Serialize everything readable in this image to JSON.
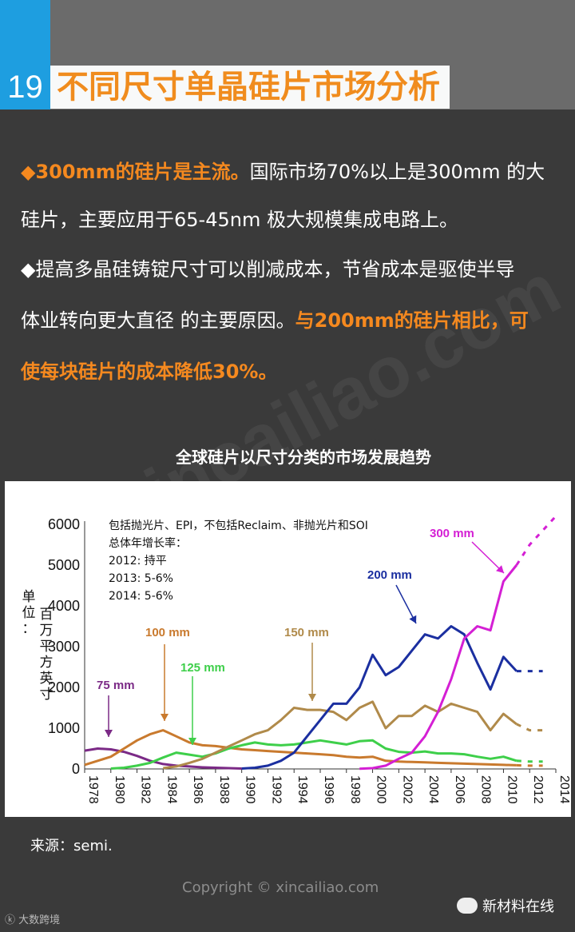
{
  "header": {
    "number": "19",
    "title": "不同尺寸单晶硅片市场分析"
  },
  "paragraphs": [
    {
      "hl1": "◆300mm的硅片是主流。",
      "text1": "国际市场70%以上是300mm 的大"
    },
    {
      "text1": "硅片，主要应用于65-45nm 极大规模集成电路上。"
    },
    {
      "text1": "◆提高多晶硅铸锭尺寸可以削减成本，节省成本是驱使半导"
    },
    {
      "text1": "体业转向更大直径 的主要原因。",
      "hl1": "与200mm的硅片相比，可"
    },
    {
      "hl1": "使每块硅片的成本降低30%。"
    }
  ],
  "watermarks": [
    "xincailiao.com",
    "xincailiao.com"
  ],
  "chart_title": "全球硅片以尺寸分类的市场发展趋势",
  "chart_data": {
    "type": "line",
    "ylabel": "单位：百万平方英寸",
    "ylim": [
      0,
      6000
    ],
    "yticks": [
      "0",
      "1000",
      "2000",
      "3000",
      "4000",
      "5000",
      "6000"
    ],
    "xticks": [
      "1978",
      "1980",
      "1982",
      "1984",
      "1986",
      "1988",
      "1990",
      "1992",
      "1994",
      "1996",
      "1998",
      "2000",
      "2002",
      "2004",
      "2006",
      "2008",
      "2010",
      "2012",
      "2014"
    ],
    "notes": [
      "包括抛光片、EPI，不包括Reclaim、非抛光片和SOI",
      "总体年增长率：",
      "2012: 持平",
      "2013: 5-6%",
      "2014: 5-6%"
    ],
    "series": [
      {
        "name": "75 mm",
        "color": "#7b2a86",
        "x": [
          1978,
          1979,
          1980,
          1981,
          1982,
          1983,
          1984,
          1985,
          1986,
          1987,
          1988,
          1989,
          1990
        ],
        "y": [
          450,
          500,
          480,
          420,
          320,
          200,
          120,
          80,
          60,
          40,
          30,
          20,
          10
        ]
      },
      {
        "name": "100 mm",
        "color": "#c97a2e",
        "x": [
          1978,
          1979,
          1980,
          1981,
          1982,
          1983,
          1984,
          1985,
          1986,
          1987,
          1988,
          1989,
          1990,
          1991,
          1992,
          1993,
          1994,
          1995,
          1996,
          1997,
          1998,
          1999,
          2000,
          2001,
          2002,
          2003,
          2004,
          2005,
          2006,
          2007,
          2008,
          2009,
          2010,
          2011
        ],
        "y": [
          100,
          200,
          300,
          500,
          700,
          850,
          950,
          800,
          650,
          580,
          560,
          520,
          480,
          460,
          440,
          420,
          400,
          380,
          360,
          340,
          300,
          280,
          300,
          200,
          180,
          170,
          160,
          150,
          140,
          130,
          120,
          110,
          100,
          90
        ]
      },
      {
        "name": "125 mm",
        "color": "#3ecf4a",
        "x": [
          1980,
          1981,
          1982,
          1983,
          1984,
          1985,
          1986,
          1987,
          1988,
          1989,
          1990,
          1991,
          1992,
          1993,
          1994,
          1995,
          1996,
          1997,
          1998,
          1999,
          2000,
          2001,
          2002,
          2003,
          2004,
          2005,
          2006,
          2007,
          2008,
          2009,
          2010,
          2011
        ],
        "y": [
          10,
          30,
          80,
          150,
          280,
          400,
          350,
          300,
          380,
          500,
          580,
          650,
          600,
          580,
          600,
          650,
          700,
          650,
          600,
          680,
          700,
          500,
          420,
          400,
          430,
          380,
          380,
          360,
          300,
          250,
          300,
          200
        ]
      },
      {
        "name": "150 mm",
        "color": "#b08a4a",
        "x": [
          1984,
          1985,
          1986,
          1987,
          1988,
          1989,
          1990,
          1991,
          1992,
          1993,
          1994,
          1995,
          1996,
          1997,
          1998,
          1999,
          2000,
          2001,
          2002,
          2003,
          2004,
          2005,
          2006,
          2007,
          2008,
          2009,
          2010,
          2011
        ],
        "y": [
          20,
          60,
          150,
          250,
          400,
          550,
          700,
          850,
          950,
          1200,
          1500,
          1450,
          1450,
          1400,
          1200,
          1500,
          1650,
          1000,
          1300,
          1300,
          1550,
          1400,
          1600,
          1500,
          1400,
          950,
          1350,
          1100
        ]
      },
      {
        "name": "200 mm",
        "color": "#1b2fa0",
        "x": [
          1990,
          1991,
          1992,
          1993,
          1994,
          1995,
          1996,
          1997,
          1998,
          1999,
          2000,
          2001,
          2002,
          2003,
          2004,
          2005,
          2006,
          2007,
          2008,
          2009,
          2010,
          2011
        ],
        "y": [
          10,
          30,
          80,
          200,
          400,
          800,
          1200,
          1600,
          1600,
          2000,
          2800,
          2300,
          2500,
          2900,
          3300,
          3200,
          3500,
          3300,
          2600,
          1950,
          2750,
          2400
        ]
      },
      {
        "name": "300 mm",
        "color": "#d41fd4",
        "x": [
          1999,
          2000,
          2001,
          2002,
          2003,
          2004,
          2005,
          2006,
          2007,
          2008,
          2009,
          2010,
          2011
        ],
        "y": [
          5,
          20,
          80,
          250,
          400,
          800,
          1400,
          2200,
          3200,
          3500,
          3400,
          4600,
          5000
        ]
      }
    ],
    "forecast": [
      {
        "series": "300 mm",
        "x": [
          2011,
          2012,
          2013,
          2014
        ],
        "y": [
          5000,
          5500,
          5850,
          6200
        ]
      },
      {
        "series": "200 mm",
        "x": [
          2011,
          2012,
          2013
        ],
        "y": [
          2400,
          2400,
          2400
        ]
      },
      {
        "series": "150 mm",
        "x": [
          2011,
          2012,
          2013
        ],
        "y": [
          1100,
          950,
          950
        ]
      },
      {
        "series": "125 mm",
        "x": [
          2011,
          2012,
          2013
        ],
        "y": [
          200,
          180,
          180
        ]
      },
      {
        "series": "100 mm",
        "x": [
          2011,
          2012,
          2013
        ],
        "y": [
          90,
          80,
          80
        ]
      }
    ],
    "annotations": [
      {
        "series": "75 mm",
        "text": "75 mm"
      },
      {
        "series": "100 mm",
        "text": "100 mm"
      },
      {
        "series": "125 mm",
        "text": "125 mm"
      },
      {
        "series": "150 mm",
        "text": "150 mm"
      },
      {
        "series": "200 mm",
        "text": "200 mm"
      },
      {
        "series": "300 mm",
        "text": "300 mm"
      }
    ]
  },
  "source": "来源：semi.",
  "copyright": "Copyright © xincailiao.com",
  "brand": "新材料在线",
  "logo_small": "大数跨境"
}
